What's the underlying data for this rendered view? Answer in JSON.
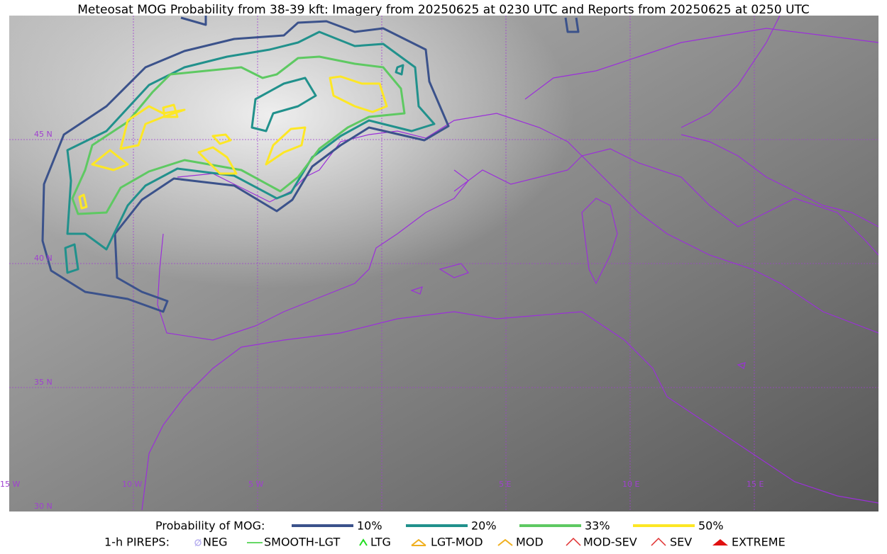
{
  "header": {
    "title": "Meteosat MOG Probability from 38-39 kft: Imagery from 20250625 at 0230 UTC and Reports from 20250625 at 0250 UTC"
  },
  "map": {
    "lat_labels": [
      "45 N",
      "40 N",
      "35 N",
      "30 N"
    ],
    "lon_labels": [
      "15 W",
      "10 W",
      "5 W",
      "5 E",
      "10 E",
      "15 E"
    ]
  },
  "legend": {
    "title": "Probability of MOG:",
    "items": [
      {
        "label": "10%",
        "color": "#3b528b"
      },
      {
        "label": "20%",
        "color": "#21918c"
      },
      {
        "label": "33%",
        "color": "#5ec962"
      },
      {
        "label": "50%",
        "color": "#fde725"
      }
    ]
  },
  "pireps": {
    "title": "1-h PIREPS:",
    "items": [
      "NEG",
      "SMOOTH-LGT",
      "LTG",
      "LGT-MOD",
      "MOD",
      "MOD-SEV",
      "SEV",
      "EXTREME"
    ]
  }
}
